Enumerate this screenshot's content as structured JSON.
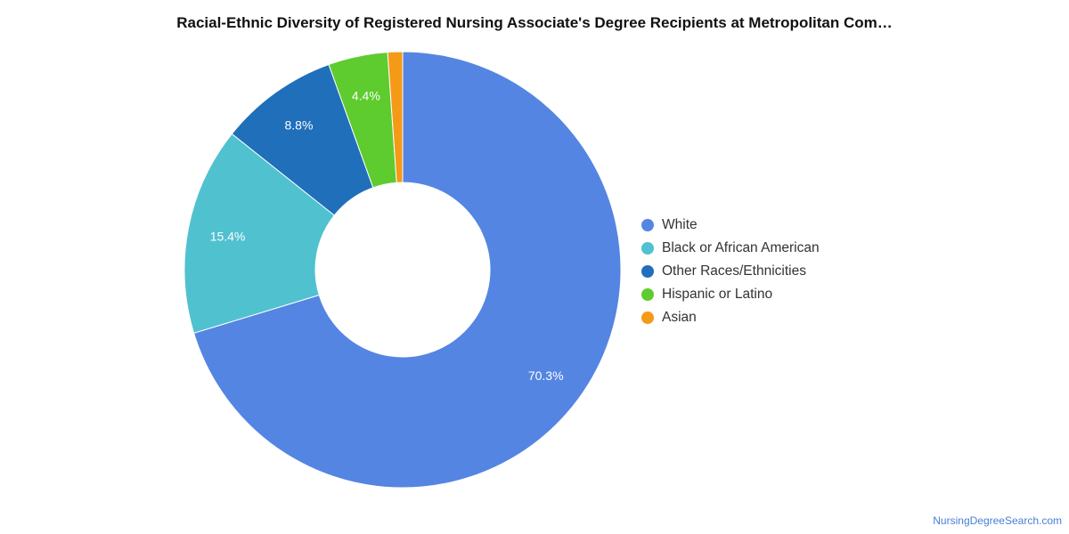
{
  "title": "Racial-Ethnic Diversity of Registered Nursing Associate's Degree Recipients at Metropolitan Com…",
  "watermark": "NursingDegreeSearch.com",
  "chart_data": {
    "type": "pie",
    "donut": true,
    "title": "Racial-Ethnic Diversity of Registered Nursing Associate's Degree Recipients at Metropolitan Com…",
    "legend_position": "right",
    "categories": [
      "White",
      "Black or African American",
      "Other Races/Ethnicities",
      "Hispanic or Latino",
      "Asian"
    ],
    "values": [
      70.3,
      15.4,
      8.8,
      4.4,
      1.1
    ],
    "labels": [
      "70.3%",
      "15.4%",
      "8.8%",
      "4.4%",
      ""
    ],
    "colors": [
      "#5485e2",
      "#50c1cf",
      "#1f6fbb",
      "#5ecb2e",
      "#f59a17"
    ]
  }
}
